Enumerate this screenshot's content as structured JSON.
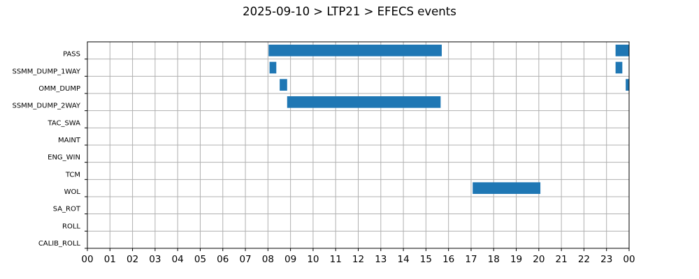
{
  "chart_data": {
    "type": "gantt",
    "title": "2025-09-10 > LTP21 > EFECS events",
    "xlabel": "",
    "ylabel": "",
    "x_unit": "hour of day",
    "xlim": [
      0,
      24
    ],
    "grid": true,
    "color": "#1f77b4",
    "x_tick_labels": [
      "00",
      "01",
      "02",
      "03",
      "04",
      "05",
      "06",
      "07",
      "08",
      "09",
      "10",
      "11",
      "12",
      "13",
      "14",
      "15",
      "16",
      "17",
      "18",
      "19",
      "20",
      "21",
      "22",
      "23",
      "00"
    ],
    "categories": [
      "PASS",
      "SSMM_DUMP_1WAY",
      "OMM_DUMP",
      "SSMM_DUMP_2WAY",
      "TAC_SWA",
      "MAINT",
      "ENG_WIN",
      "TCM",
      "WOL",
      "SA_ROT",
      "ROLL",
      "CALIB_ROLL"
    ],
    "events": [
      {
        "category": "PASS",
        "start": 8.03,
        "end": 15.7
      },
      {
        "category": "PASS",
        "start": 23.4,
        "end": 24.0
      },
      {
        "category": "SSMM_DUMP_1WAY",
        "start": 8.07,
        "end": 8.37
      },
      {
        "category": "SSMM_DUMP_1WAY",
        "start": 23.4,
        "end": 23.7
      },
      {
        "category": "OMM_DUMP",
        "start": 8.52,
        "end": 8.85
      },
      {
        "category": "OMM_DUMP",
        "start": 23.85,
        "end": 24.0
      },
      {
        "category": "SSMM_DUMP_2WAY",
        "start": 8.85,
        "end": 15.65
      },
      {
        "category": "WOL",
        "start": 17.07,
        "end": 20.07
      }
    ]
  }
}
